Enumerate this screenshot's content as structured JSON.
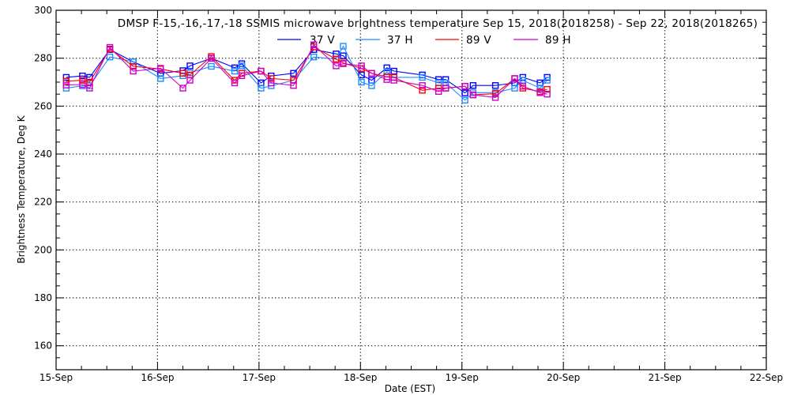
{
  "chart_data": {
    "type": "line",
    "title": "DMSP F-15,-16,-17,-18 SSMIS microwave brightness temperature Sep 15, 2018(2018258) - Sep 22, 2018(2018265)",
    "xlabel": "Date (EST)",
    "ylabel": "Brightness Temperature, Deg K",
    "xlim": [
      0,
      7
    ],
    "ylim": [
      150,
      300
    ],
    "x_unit": "days since 15-Sep 00:00",
    "x_ticks": [
      {
        "v": 0,
        "label": "15-Sep"
      },
      {
        "v": 1,
        "label": "16-Sep"
      },
      {
        "v": 2,
        "label": "17-Sep"
      },
      {
        "v": 3,
        "label": "18-Sep"
      },
      {
        "v": 4,
        "label": "19-Sep"
      },
      {
        "v": 5,
        "label": "20-Sep"
      },
      {
        "v": 6,
        "label": "21-Sep"
      },
      {
        "v": 7,
        "label": "22-Sep"
      }
    ],
    "y_ticks": [
      {
        "v": 160,
        "label": "160"
      },
      {
        "v": 180,
        "label": "180"
      },
      {
        "v": 200,
        "label": "200"
      },
      {
        "v": 220,
        "label": "220"
      },
      {
        "v": 240,
        "label": "240"
      },
      {
        "v": 260,
        "label": "260"
      },
      {
        "v": 280,
        "label": "280"
      },
      {
        "v": 300,
        "label": "300"
      }
    ],
    "grid": true,
    "legend_position": "top-center",
    "x": [
      0.1,
      0.26,
      0.33,
      0.53,
      0.76,
      1.03,
      1.25,
      1.32,
      1.53,
      1.76,
      1.83,
      2.02,
      2.12,
      2.34,
      2.54,
      2.76,
      2.83,
      3.01,
      3.11,
      3.26,
      3.33,
      3.61,
      3.77,
      3.84,
      4.03,
      4.11,
      4.33,
      4.52,
      4.6,
      4.77,
      4.84
    ],
    "series": [
      {
        "name": "37 V",
        "color": "#0000ff",
        "values": [
          272,
          272.6,
          272,
          283.6,
          278.5,
          273.7,
          274.8,
          276.8,
          280,
          276,
          277.7,
          269.7,
          272.6,
          273.7,
          283.6,
          281.8,
          281,
          273,
          270.8,
          276,
          274.6,
          273,
          271.1,
          271.1,
          265.5,
          268.6,
          268.6,
          269.7,
          272,
          269.7,
          272
        ]
      },
      {
        "name": "37 H",
        "color": "#1e8cff",
        "values": [
          267.5,
          268.5,
          268.5,
          280.5,
          278.5,
          271.5,
          272.7,
          273.9,
          276.6,
          274.6,
          276.8,
          267.5,
          268.5,
          270.8,
          280.5,
          279.6,
          285,
          270,
          268.5,
          274.3,
          272,
          272,
          269.7,
          269.7,
          262.5,
          265.6,
          265.6,
          267.5,
          270.8,
          267.5,
          270.8
        ]
      },
      {
        "name": "89 V",
        "color": "#ff0000",
        "values": [
          270.4,
          270.8,
          270,
          283.8,
          276.6,
          275.5,
          273.7,
          273,
          280.7,
          270.8,
          273.7,
          274.6,
          271.5,
          270.8,
          284.7,
          279.6,
          278,
          275.7,
          273.7,
          272.2,
          272,
          266.6,
          267.5,
          267.5,
          268.3,
          264.7,
          265.2,
          271.5,
          267.5,
          266,
          267
        ]
      },
      {
        "name": "89 H",
        "color": "#cc00cc",
        "values": [
          268.8,
          269,
          267.5,
          284.5,
          274.6,
          275.8,
          267.5,
          270.8,
          279.9,
          269.7,
          272.7,
          274.6,
          269.7,
          268.6,
          285.6,
          276.8,
          277.7,
          276.8,
          273.7,
          271.1,
          270.8,
          268.6,
          266.1,
          267.5,
          268.3,
          264.7,
          263.6,
          271.5,
          268.3,
          265.6,
          265
        ]
      }
    ]
  }
}
